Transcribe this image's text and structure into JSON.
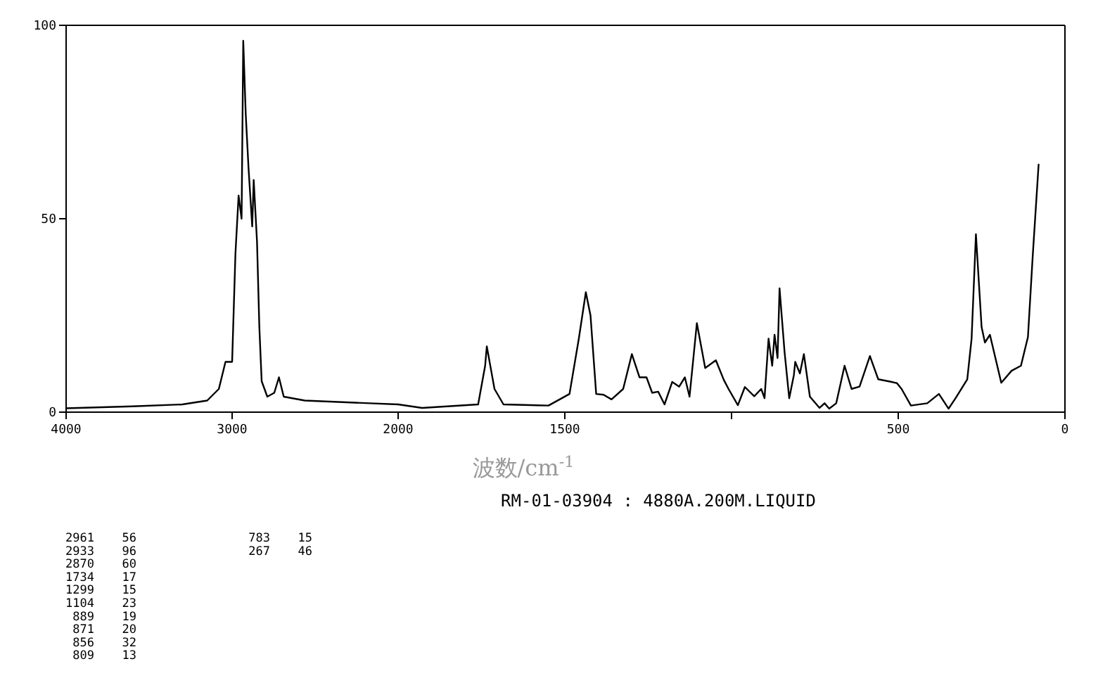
{
  "chart_data": [
    {
      "type": "line",
      "xlim": [
        4000,
        2000
      ],
      "xticks": [
        4000,
        3000,
        2000
      ],
      "ylim": [
        0,
        100
      ],
      "yticks": [
        0,
        50,
        100
      ],
      "grid": false,
      "series": [
        {
          "color": "#000000",
          "x": [
            4000,
            3600,
            3300,
            3150,
            3080,
            3040,
            3000,
            2980,
            2961,
            2943,
            2933,
            2918,
            2901,
            2879,
            2870,
            2850,
            2836,
            2822,
            2788,
            2746,
            2718,
            2689,
            2562,
            2170,
            2000
          ],
          "values": [
            1,
            1.5,
            2,
            3,
            6,
            13,
            13,
            41,
            56,
            50,
            96,
            77,
            63,
            48,
            60,
            44,
            22,
            8,
            4,
            5,
            9,
            4,
            3,
            2.3,
            2
          ]
        }
      ]
    },
    {
      "type": "line",
      "xlim": [
        2000,
        0
      ],
      "xticks": [
        1500,
        {
          "value": 1000,
          "label": null
        },
        500,
        0
      ],
      "ylim": [
        0,
        100
      ],
      "yticks": [
        0,
        50,
        100
      ],
      "tick_labels": "x",
      "grid": false,
      "xlabel": "波数/cm$^{-1}$",
      "subtitle": "RM-01-03904 : 4880A.200M.LIQUID",
      "series": [
        {
          "color": "#000000",
          "x": [
            2000,
            1928,
            1760,
            1739,
            1734,
            1711,
            1684,
            1549,
            1486,
            1458,
            1437,
            1423,
            1406,
            1384,
            1360,
            1325,
            1299,
            1276,
            1255,
            1238,
            1220,
            1201,
            1178,
            1157,
            1140,
            1126,
            1104,
            1079,
            1047,
            1023,
            1009,
            981,
            960,
            932,
            911,
            901,
            889,
            878,
            871,
            862,
            856,
            841,
            827,
            813,
            809,
            795,
            783,
            765,
            736,
            721,
            707,
            686,
            661,
            640,
            616,
            585,
            560,
            525,
            504,
            490,
            462,
            413,
            378,
            349,
            328,
            293,
            280,
            267,
            250,
            240,
            225,
            191,
            160,
            132,
            111,
            97,
            79
          ],
          "values": [
            2,
            1.1,
            2,
            12,
            17,
            6,
            2,
            1.7,
            4.7,
            19,
            31,
            25,
            4.7,
            4.5,
            3.3,
            6,
            15,
            9,
            9,
            5,
            5.3,
            2,
            7.8,
            6.6,
            9,
            4,
            23,
            11.4,
            13.4,
            8.3,
            6,
            1.8,
            6.5,
            4.1,
            6,
            3.6,
            19,
            12,
            20,
            14,
            32,
            15.6,
            3.6,
            9.6,
            13,
            10,
            15,
            4,
            1.1,
            2.3,
            0.9,
            2.3,
            12,
            6,
            6.6,
            14.5,
            8.5,
            7.9,
            7.5,
            6,
            1.7,
            2.3,
            4.7,
            0.9,
            3.6,
            8.5,
            19,
            46,
            22,
            18,
            20,
            7.6,
            10.7,
            12,
            19.4,
            39.9,
            64
          ]
        }
      ],
      "annotations": [
        "2961",
        "56",
        "2933",
        "96",
        "2870",
        "60",
        "1734",
        "17",
        "1299",
        "15",
        "1104",
        "23",
        "889",
        "19",
        "871",
        "20",
        "856",
        "32",
        "809",
        "13",
        "783",
        "15",
        "267",
        "46"
      ]
    }
  ]
}
